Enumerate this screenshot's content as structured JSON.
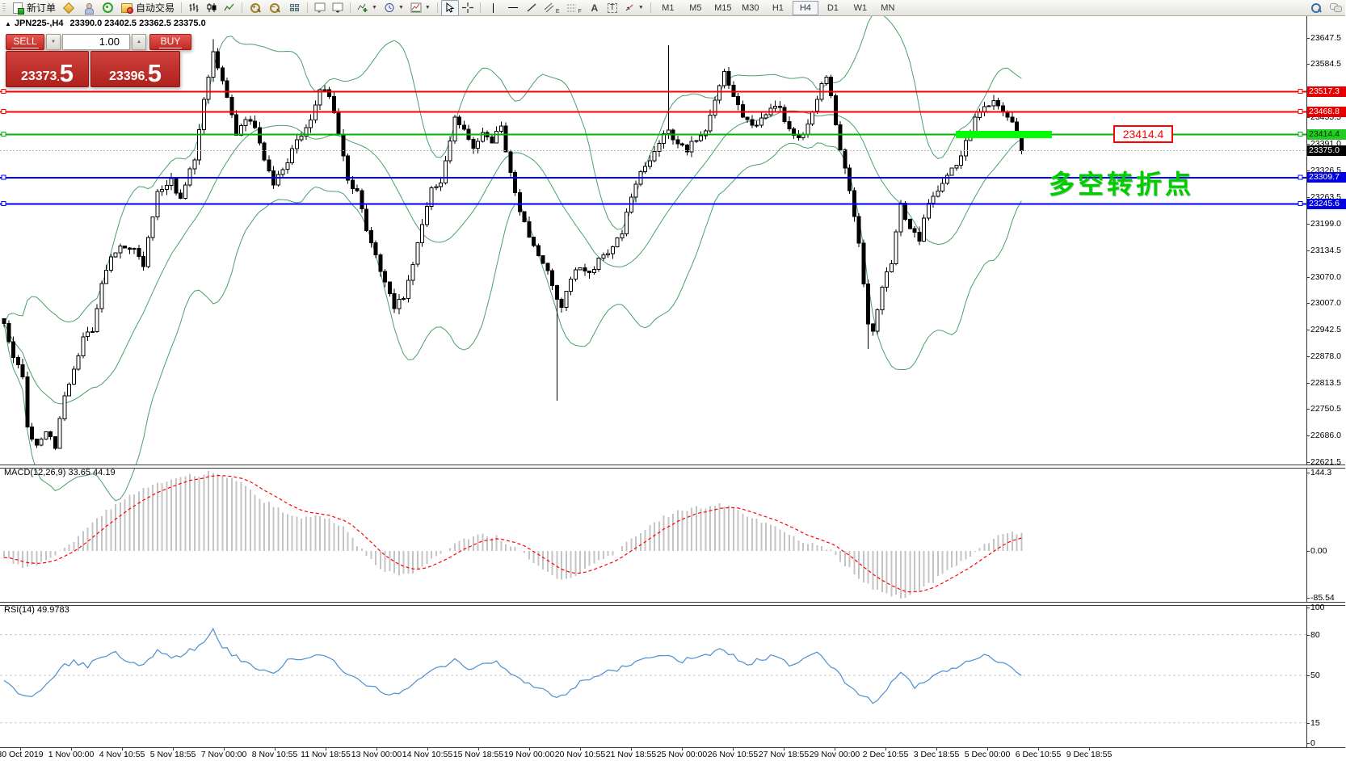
{
  "toolbar": {
    "new_order_label": "新订单",
    "auto_trading_label": "自动交易",
    "timeframes": [
      {
        "label": "M1",
        "active": false
      },
      {
        "label": "M5",
        "active": false
      },
      {
        "label": "M15",
        "active": false
      },
      {
        "label": "M30",
        "active": false
      },
      {
        "label": "H1",
        "active": false
      },
      {
        "label": "H4",
        "active": true
      },
      {
        "label": "D1",
        "active": false
      },
      {
        "label": "W1",
        "active": false
      },
      {
        "label": "MN",
        "active": false
      }
    ],
    "icons": [
      "new-order-icon",
      "eraser-icon",
      "profile-icon",
      "signal-icon",
      "autotrade-icon",
      "chart-bars-icon",
      "chart-candles-icon",
      "chart-line-icon",
      "zoom-in-icon",
      "zoom-out-icon",
      "tile-windows-icon",
      "chart-shift-icon",
      "chart-autoscroll-icon",
      "indicators-icon",
      "periods-icon",
      "templates-icon",
      "cursor-icon",
      "crosshair-icon",
      "vline-icon",
      "hline-icon",
      "trendline-icon",
      "channel-icon",
      "fibonacci-icon",
      "text-icon",
      "text-label-icon",
      "shapes-icon",
      "search-icon",
      "chat-icon"
    ]
  },
  "chart": {
    "collapse_marker": "▲",
    "symbol": "JPN225-,H4",
    "ohlc": "23390.0 23402.5 23362.5 23375.0"
  },
  "trade_panel": {
    "sell_label": "SELL",
    "buy_label": "BUY",
    "volume": "1.00",
    "sell_price_main": "23373",
    "sell_price_dot": ".",
    "sell_price_big": "5",
    "buy_price_main": "23396",
    "buy_price_dot": ".",
    "buy_price_big": "5",
    "down_arrow": "▼",
    "up_arrow": "▲"
  },
  "chart_data": {
    "type": "candlestick+indicators",
    "main": {
      "ylim": [
        22610,
        23700
      ],
      "bars_visible": 220,
      "last_price": 23375.0,
      "yticks": [
        23647.5,
        23584.5,
        23455.5,
        23391.0,
        23326.5,
        23263.5,
        23199.0,
        23134.5,
        23070.0,
        23007.0,
        22942.5,
        22878.0,
        22813.5,
        22750.5,
        22686.0,
        22621.5
      ],
      "price_path": [
        [
          0,
          22950
        ],
        [
          2,
          22880
        ],
        [
          4,
          22820
        ],
        [
          5,
          22700
        ],
        [
          7,
          22660
        ],
        [
          9,
          22700
        ],
        [
          11,
          22660
        ],
        [
          13,
          22780
        ],
        [
          15,
          22850
        ],
        [
          17,
          22920
        ],
        [
          19,
          22940
        ],
        [
          21,
          23060
        ],
        [
          23,
          23120
        ],
        [
          25,
          23150
        ],
        [
          28,
          23140
        ],
        [
          30,
          23100
        ],
        [
          33,
          23280
        ],
        [
          36,
          23300
        ],
        [
          38,
          23260
        ],
        [
          41,
          23360
        ],
        [
          43,
          23500
        ],
        [
          45,
          23620
        ],
        [
          46,
          23580
        ],
        [
          48,
          23500
        ],
        [
          50,
          23420
        ],
        [
          52,
          23450
        ],
        [
          54,
          23430
        ],
        [
          56,
          23350
        ],
        [
          58,
          23290
        ],
        [
          60,
          23330
        ],
        [
          63,
          23400
        ],
        [
          66,
          23450
        ],
        [
          68,
          23520
        ],
        [
          70,
          23510
        ],
        [
          72,
          23420
        ],
        [
          74,
          23300
        ],
        [
          76,
          23280
        ],
        [
          78,
          23180
        ],
        [
          80,
          23120
        ],
        [
          82,
          23050
        ],
        [
          84,
          23000
        ],
        [
          86,
          23020
        ],
        [
          88,
          23100
        ],
        [
          90,
          23200
        ],
        [
          92,
          23280
        ],
        [
          94,
          23300
        ],
        [
          97,
          23450
        ],
        [
          99,
          23430
        ],
        [
          101,
          23380
        ],
        [
          103,
          23420
        ],
        [
          105,
          23400
        ],
        [
          107,
          23430
        ],
        [
          109,
          23320
        ],
        [
          111,
          23230
        ],
        [
          113,
          23160
        ],
        [
          115,
          23120
        ],
        [
          117,
          23080
        ],
        [
          119,
          23020
        ],
        [
          120,
          22990
        ],
        [
          122,
          23070
        ],
        [
          124,
          23090
        ],
        [
          126,
          23080
        ],
        [
          128,
          23110
        ],
        [
          130,
          23130
        ],
        [
          133,
          23180
        ],
        [
          135,
          23270
        ],
        [
          137,
          23320
        ],
        [
          139,
          23350
        ],
        [
          141,
          23400
        ],
        [
          143,
          23420
        ],
        [
          145,
          23390
        ],
        [
          147,
          23380
        ],
        [
          149,
          23400
        ],
        [
          151,
          23420
        ],
        [
          153,
          23500
        ],
        [
          155,
          23560
        ],
        [
          157,
          23500
        ],
        [
          159,
          23460
        ],
        [
          161,
          23430
        ],
        [
          163,
          23450
        ],
        [
          165,
          23470
        ],
        [
          167,
          23480
        ],
        [
          169,
          23420
        ],
        [
          171,
          23400
        ],
        [
          173,
          23440
        ],
        [
          175,
          23500
        ],
        [
          177,
          23560
        ],
        [
          178,
          23500
        ],
        [
          180,
          23380
        ],
        [
          182,
          23280
        ],
        [
          184,
          23150
        ],
        [
          186,
          22950
        ],
        [
          187,
          22940
        ],
        [
          189,
          23050
        ],
        [
          191,
          23100
        ],
        [
          193,
          23250
        ],
        [
          195,
          23180
        ],
        [
          197,
          23160
        ],
        [
          199,
          23250
        ],
        [
          201,
          23280
        ],
        [
          203,
          23320
        ],
        [
          205,
          23340
        ],
        [
          207,
          23400
        ],
        [
          209,
          23450
        ],
        [
          211,
          23480
        ],
        [
          213,
          23500
        ],
        [
          215,
          23470
        ],
        [
          217,
          23440
        ],
        [
          219,
          23375
        ]
      ],
      "long_wicks": [
        {
          "bar": 45,
          "high": 23645
        },
        {
          "bar": 119,
          "low": 22770
        },
        {
          "bar": 143,
          "high": 23630
        },
        {
          "bar": 186,
          "low": 22895
        }
      ],
      "bollinger": {
        "period": 20,
        "deviation": 2,
        "color": "#4aa06a"
      },
      "hlines": [
        {
          "price": 23517.3,
          "color": "#ff0000",
          "label_bg": "#e40000",
          "label_fg": "#ffffff"
        },
        {
          "price": 23468.8,
          "color": "#ff0000",
          "label_bg": "#e40000",
          "label_fg": "#ffffff"
        },
        {
          "price": 23414.4,
          "color": "#00b400",
          "label_bg": "#22cc22",
          "label_fg": "#003300"
        },
        {
          "price": 23309.7,
          "color": "#0000ff",
          "label_bg": "#0000e0",
          "label_fg": "#ffffff"
        },
        {
          "price": 23245.6,
          "color": "#0000ff",
          "label_bg": "#0000e0",
          "label_fg": "#ffffff"
        }
      ],
      "highlight_segment": {
        "price": 23414.4,
        "x1": 1183,
        "x2": 1302,
        "color": "#00ff00"
      },
      "callout": {
        "text": "23414.4",
        "color": "#ff0000"
      },
      "note": {
        "text": "多空转折点",
        "color": "#00cc00"
      }
    },
    "macd": {
      "label": "MACD(12,26,9) 33.65 44.19",
      "value": 33.65,
      "signal": 44.19,
      "ylim": [
        -92,
        150
      ],
      "yticks": [
        {
          "v": 144.3,
          "label": "144.3"
        },
        {
          "v": 0,
          "label": "0.00"
        },
        {
          "v": -85.54,
          "label": "-85.54"
        }
      ],
      "anchors": [
        [
          0,
          -12
        ],
        [
          4,
          -28
        ],
        [
          8,
          -22
        ],
        [
          12,
          -2
        ],
        [
          16,
          28
        ],
        [
          20,
          60
        ],
        [
          24,
          85
        ],
        [
          28,
          105
        ],
        [
          32,
          120
        ],
        [
          36,
          130
        ],
        [
          40,
          138
        ],
        [
          44,
          144
        ],
        [
          48,
          138
        ],
        [
          52,
          118
        ],
        [
          56,
          92
        ],
        [
          60,
          72
        ],
        [
          64,
          60
        ],
        [
          66,
          62
        ],
        [
          68,
          66
        ],
        [
          70,
          60
        ],
        [
          73,
          45
        ],
        [
          76,
          12
        ],
        [
          79,
          -18
        ],
        [
          82,
          -38
        ],
        [
          85,
          -46
        ],
        [
          88,
          -40
        ],
        [
          91,
          -22
        ],
        [
          94,
          -4
        ],
        [
          97,
          14
        ],
        [
          100,
          24
        ],
        [
          103,
          30
        ],
        [
          106,
          26
        ],
        [
          109,
          10
        ],
        [
          112,
          -8
        ],
        [
          115,
          -28
        ],
        [
          118,
          -44
        ],
        [
          121,
          -55
        ],
        [
          124,
          -42
        ],
        [
          127,
          -25
        ],
        [
          130,
          -10
        ],
        [
          133,
          8
        ],
        [
          136,
          28
        ],
        [
          139,
          48
        ],
        [
          142,
          62
        ],
        [
          145,
          72
        ],
        [
          148,
          78
        ],
        [
          151,
          80
        ],
        [
          154,
          84
        ],
        [
          157,
          78
        ],
        [
          160,
          66
        ],
        [
          163,
          55
        ],
        [
          166,
          45
        ],
        [
          169,
          30
        ],
        [
          172,
          18
        ],
        [
          175,
          10
        ],
        [
          178,
          0
        ],
        [
          181,
          -25
        ],
        [
          184,
          -50
        ],
        [
          187,
          -68
        ],
        [
          190,
          -80
        ],
        [
          193,
          -86
        ],
        [
          196,
          -76
        ],
        [
          199,
          -60
        ],
        [
          202,
          -44
        ],
        [
          205,
          -28
        ],
        [
          208,
          -8
        ],
        [
          211,
          12
        ],
        [
          214,
          26
        ],
        [
          217,
          34
        ],
        [
          219,
          33.65
        ]
      ],
      "histogram_color": "#c4c4c4",
      "signal_color": "#ff0000"
    },
    "rsi": {
      "label": "RSI(14) 49.9783",
      "value": 49.9783,
      "levels": [
        80,
        50,
        15
      ],
      "yticks": [
        {
          "v": 100,
          "label": "100"
        },
        {
          "v": 80,
          "label": "80"
        },
        {
          "v": 50,
          "label": "50"
        },
        {
          "v": 15,
          "label": "15"
        },
        {
          "v": 0,
          "label": "0"
        }
      ],
      "anchors": [
        [
          0,
          46
        ],
        [
          3,
          38
        ],
        [
          6,
          35
        ],
        [
          9,
          44
        ],
        [
          12,
          55
        ],
        [
          15,
          60
        ],
        [
          18,
          57
        ],
        [
          21,
          64
        ],
        [
          24,
          66
        ],
        [
          27,
          60
        ],
        [
          30,
          57
        ],
        [
          33,
          68
        ],
        [
          36,
          62
        ],
        [
          39,
          66
        ],
        [
          42,
          72
        ],
        [
          45,
          83
        ],
        [
          47,
          72
        ],
        [
          49,
          65
        ],
        [
          52,
          60
        ],
        [
          55,
          55
        ],
        [
          58,
          52
        ],
        [
          61,
          60
        ],
        [
          64,
          63
        ],
        [
          67,
          66
        ],
        [
          70,
          64
        ],
        [
          73,
          54
        ],
        [
          76,
          48
        ],
        [
          79,
          42
        ],
        [
          82,
          38
        ],
        [
          85,
          35
        ],
        [
          88,
          44
        ],
        [
          91,
          52
        ],
        [
          94,
          55
        ],
        [
          97,
          62
        ],
        [
          100,
          55
        ],
        [
          103,
          58
        ],
        [
          106,
          60
        ],
        [
          109,
          50
        ],
        [
          112,
          44
        ],
        [
          115,
          40
        ],
        [
          118,
          36
        ],
        [
          121,
          34
        ],
        [
          124,
          46
        ],
        [
          127,
          48
        ],
        [
          130,
          52
        ],
        [
          133,
          56
        ],
        [
          136,
          60
        ],
        [
          139,
          63
        ],
        [
          142,
          66
        ],
        [
          145,
          60
        ],
        [
          148,
          62
        ],
        [
          151,
          64
        ],
        [
          154,
          71
        ],
        [
          157,
          64
        ],
        [
          160,
          58
        ],
        [
          163,
          62
        ],
        [
          166,
          64
        ],
        [
          169,
          58
        ],
        [
          172,
          61
        ],
        [
          175,
          66
        ],
        [
          178,
          58
        ],
        [
          181,
          46
        ],
        [
          184,
          36
        ],
        [
          187,
          30
        ],
        [
          190,
          40
        ],
        [
          193,
          52
        ],
        [
          196,
          42
        ],
        [
          199,
          48
        ],
        [
          202,
          52
        ],
        [
          205,
          56
        ],
        [
          208,
          60
        ],
        [
          211,
          64
        ],
        [
          214,
          61
        ],
        [
          217,
          57
        ],
        [
          219,
          50
        ]
      ],
      "line_color": "#4d8fd0"
    },
    "x_axis": [
      "30 Oct 2019",
      "1 Nov 00:00",
      "4 Nov 10:55",
      "5 Nov 18:55",
      "7 Nov 00:00",
      "8 Nov 10:55",
      "11 Nov 18:55",
      "13 Nov 00:00",
      "14 Nov 10:55",
      "15 Nov 18:55",
      "19 Nov 00:00",
      "20 Nov 10:55",
      "21 Nov 18:55",
      "25 Nov 00:00",
      "26 Nov 10:55",
      "27 Nov 18:55",
      "29 Nov 00:00",
      "2 Dec 10:55",
      "3 Dec 18:55",
      "5 Dec 00:00",
      "6 Dec 10:55",
      "9 Dec 18:55"
    ]
  }
}
